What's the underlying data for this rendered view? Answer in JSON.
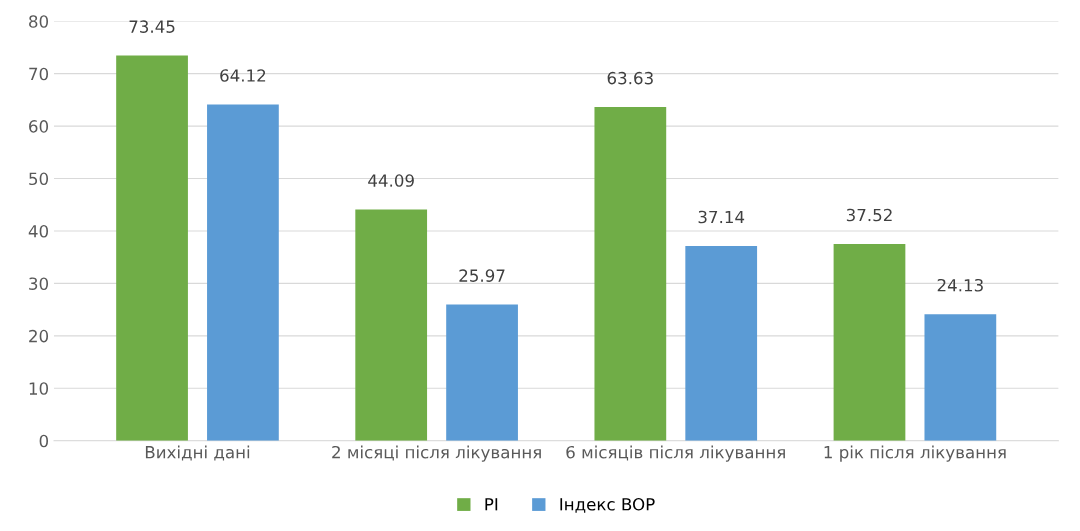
{
  "chart_data": {
    "type": "bar",
    "categories": [
      "Вихідні дані",
      "2 місяці після лікування",
      "6 місяців після лікування",
      "1 рік після лікування"
    ],
    "series": [
      {
        "name": "PI",
        "color": "#70ad47",
        "values": [
          73.45,
          44.09,
          63.63,
          37.52
        ]
      },
      {
        "name": "Індекс BOP",
        "color": "#5b9bd5",
        "values": [
          64.12,
          25.97,
          37.14,
          24.13
        ]
      }
    ],
    "ylim": [
      0,
      80
    ],
    "yticks": [
      0,
      10,
      20,
      30,
      40,
      50,
      60,
      70,
      80
    ],
    "grid": "y",
    "legend": "bottom",
    "data_labels": true
  }
}
